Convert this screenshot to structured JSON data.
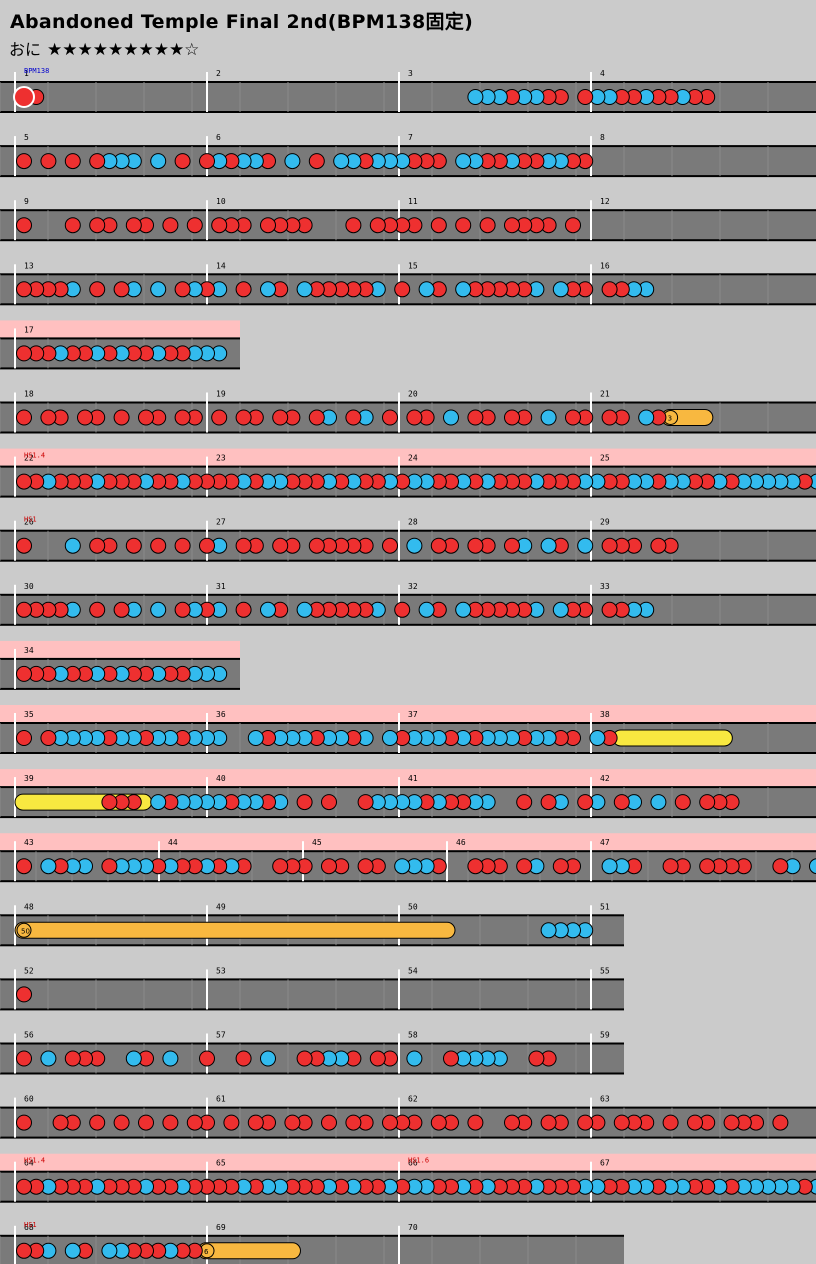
{
  "header": {
    "title": "Abandoned Temple Final 2nd(BPM138固定)",
    "difficulty": "おに",
    "stars": "★★★★★★★★★☆"
  },
  "colors": {
    "background": "#cbcbcb",
    "lane": "#7a7a7a",
    "gogo_band": "#ffc0c0",
    "don": "#ee3030",
    "ka": "#33bbee",
    "roll": "#f8b840",
    "big_roll": "#f8e840"
  },
  "rows": [
    {
      "measures": [
        {
          "n": "1",
          "bpm": "BPM138"
        },
        {
          "n": "2"
        },
        {
          "n": "3"
        },
        {
          "n": "4"
        }
      ],
      "notes": "Ld.................................. kkkdkkdd.dkkddkddkdd"
    },
    {
      "measures": [
        {
          "n": "5"
        },
        {
          "n": "6"
        },
        {
          "n": "7"
        },
        {
          "n": "8"
        }
      ],
      "notes": "d.d.d.dkkk.k.d.dkdkkd.k.d.kkdkkkddd.kkddkddkkdd"
    },
    {
      "measures": [
        {
          "n": "9"
        },
        {
          "n": "10"
        },
        {
          "n": "11"
        },
        {
          "n": "12"
        }
      ],
      "notes": "d...d.dd.dd.d.d.ddd.dddd...d.dddd.d.d.d.dddd.d"
    },
    {
      "measures": [
        {
          "n": "13"
        },
        {
          "n": "14"
        },
        {
          "n": "15"
        },
        {
          "n": "16"
        }
      ],
      "notes": "ddddk.d.dk.k.dkdk.d.kd.kdddddk.d.kd.kdddddk.kdd.ddkk"
    },
    {
      "measures": [
        {
          "n": "17"
        }
      ],
      "notes": "dddkddkdkddkddkkk",
      "gogo": true
    },
    {
      "measures": [
        {
          "n": "18"
        },
        {
          "n": "19"
        },
        {
          "n": "20"
        },
        {
          "n": "21"
        }
      ],
      "notes": "d.dd.dd.d.dd.dd.d.dd.dd.dk.dk.d.dd.k.dd.dd.k.dd.dd.kd@3"
    },
    {
      "measures": [
        {
          "n": "22",
          "hs": "HS1.4"
        },
        {
          "n": "23"
        },
        {
          "n": "24"
        },
        {
          "n": "25"
        }
      ],
      "notes": "ddkdddkdddkddkddddkdkkdddkdkddkdkkddkdkdddkdddkkddkkdkkddkdkkkkkdkkddkk",
      "gogo": true
    },
    {
      "measures": [
        {
          "n": "26",
          "hs": "HS1"
        },
        {
          "n": "27"
        },
        {
          "n": "28"
        },
        {
          "n": "29"
        }
      ],
      "notes": "d...k.dd.d.d.d.dk.dd.dd.ddddd.d.k.dd.dd.dk.kd.k.ddd.dd"
    },
    {
      "measures": [
        {
          "n": "30"
        },
        {
          "n": "31"
        },
        {
          "n": "32"
        },
        {
          "n": "33"
        }
      ],
      "notes": "ddddk.d.dk.k.dkdk.d.kd.kdddddk.d.kd.kdddddk.kdd.ddkk"
    },
    {
      "measures": [
        {
          "n": "34"
        }
      ],
      "notes": "dddkddkdkddkddkkk",
      "gogo": true
    },
    {
      "measures": [
        {
          "n": "35"
        },
        {
          "n": "36"
        },
        {
          "n": "37"
        },
        {
          "n": "38"
        }
      ],
      "notes": "d.dkkkkdkkdkkdkkk..kdkkkdkkdk.kdkkkdkdkkkdkkdd.kd#7",
      "gogo": true
    },
    {
      "measures": [
        {
          "n": "39"
        },
        {
          "n": "40"
        },
        {
          "n": "41"
        },
        {
          "n": "42"
        }
      ],
      "notes": "#8......ddd.kdkkkkdkkdk.d.d..dkkkkdkddkk..d.dk.dk.dk.k.d.ddd",
      "gogo": true
    },
    {
      "measures": [
        {
          "n": "43"
        },
        {
          "n": "44"
        },
        {
          "n": "45"
        },
        {
          "n": "46"
        },
        {
          "n": "47"
        }
      ],
      "notes": "d.kdkk.dkkkdkddkdkd..ddd.dd.dd.kkkd..ddd.dk.dd..kkd..dd.dddd..dk.kkkkk",
      "gogo": true
    },
    {
      "measures": [
        {
          "n": "48"
        },
        {
          "n": "49"
        },
        {
          "n": "50"
        },
        {
          "n": "51"
        }
      ],
      "notes": "@50..........................................kkkk",
      "width": 624
    },
    {
      "measures": [
        {
          "n": "52"
        },
        {
          "n": "53"
        },
        {
          "n": "54"
        },
        {
          "n": "55"
        }
      ],
      "notes": "d",
      "width": 624
    },
    {
      "measures": [
        {
          "n": "56"
        },
        {
          "n": "57"
        },
        {
          "n": "58"
        },
        {
          "n": "59"
        }
      ],
      "notes": "d.k.ddd..kd.k..d..d.k..ddkkd.dd.k..dkkkk..dd",
      "width": 624
    },
    {
      "measures": [
        {
          "n": "60"
        },
        {
          "n": "61"
        },
        {
          "n": "62"
        },
        {
          "n": "63"
        }
      ],
      "notes": "d..dd.d.d.d.d.dd.d.dd.dd.d.dd.ddd.dd.d..dd.dd.dd.ddd.d.dd.ddd.d"
    },
    {
      "measures": [
        {
          "n": "64",
          "hs": "HS1.4"
        },
        {
          "n": "65"
        },
        {
          "n": "66",
          "hs": "HS1.6"
        },
        {
          "n": "67"
        }
      ],
      "notes": "ddkdddkdddkddkddddkdkkdddkdkddkdkkddkdkdddkdddkkddkkdkkddkdkkkkkdkkddkk",
      "gogo": true
    },
    {
      "measures": [
        {
          "n": "68",
          "hs": "HS1"
        },
        {
          "n": "69"
        },
        {
          "n": "70"
        }
      ],
      "notes": "ddk.kd.kkdddkdd@6",
      "width": 624
    }
  ]
}
